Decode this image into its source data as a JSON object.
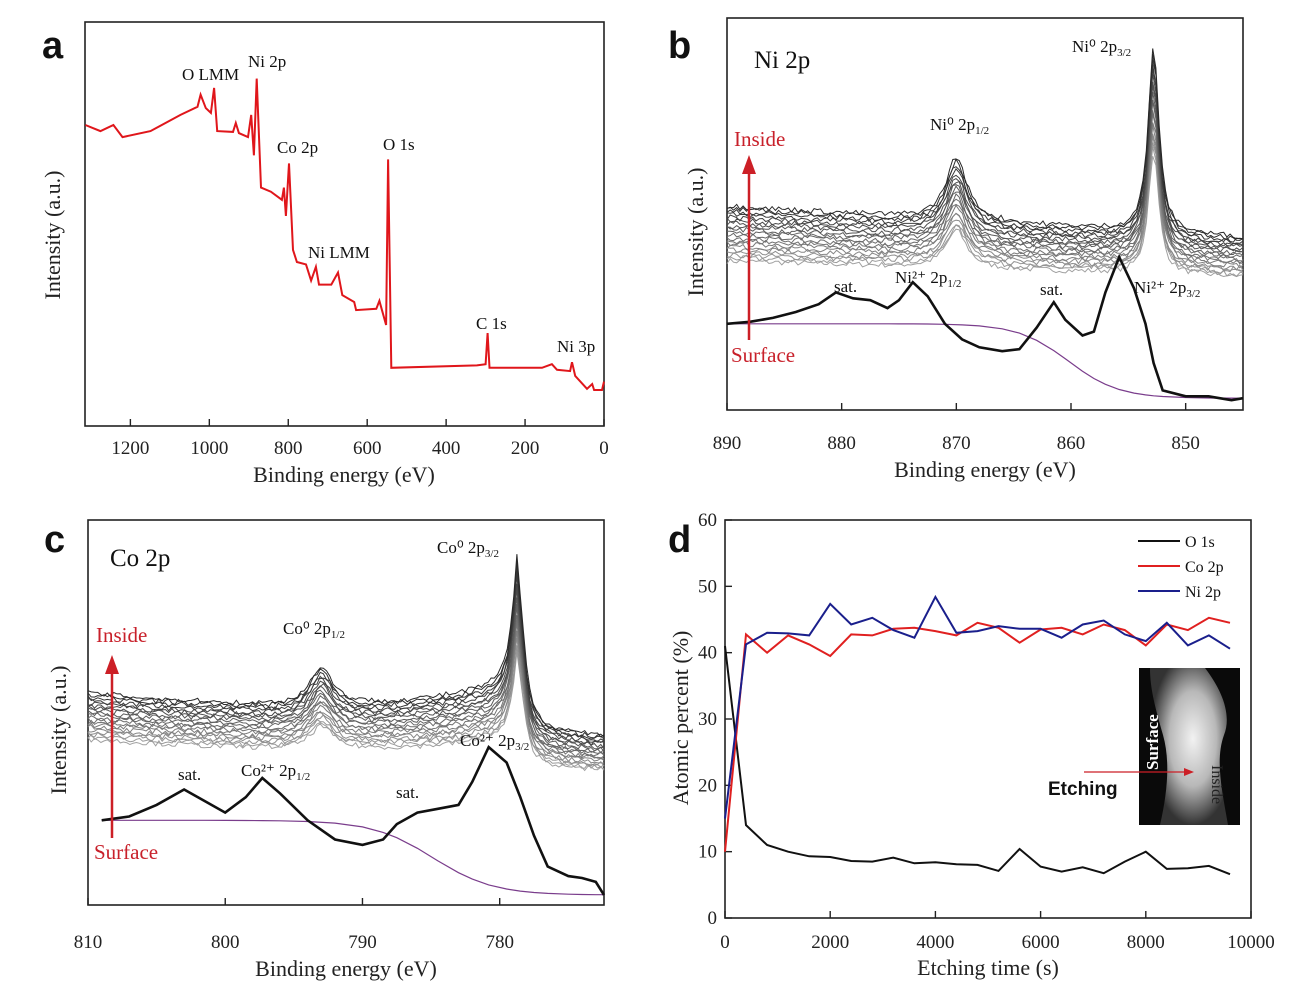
{
  "colors": {
    "survey": "#e0161b",
    "o1s": "#111111",
    "co2p": "#e02020",
    "ni2p": "#1a1f8c",
    "depth_arrow": "#cc1f26"
  },
  "chart_data": [
    {
      "panel": "a",
      "type": "line",
      "xlabel": "Binding energy (eV)",
      "ylabel": "Intensity (a.u.)",
      "xlim": [
        1315,
        0
      ],
      "ylim": [
        0,
        100
      ],
      "x_reversed": true,
      "xticks": [
        1200,
        1000,
        800,
        600,
        400,
        200,
        0
      ],
      "series": [
        {
          "color": "#e0161b",
          "points": [
            [
              1314,
              74.5
            ],
            [
              1276,
              73
            ],
            [
              1243,
              74.5
            ],
            [
              1220,
              71.5
            ],
            [
              1149,
              73
            ],
            [
              1073,
              77
            ],
            [
              1030,
              79
            ],
            [
              1022,
              82
            ],
            [
              1009,
              78.7
            ],
            [
              996,
              77.5
            ],
            [
              988,
              83.7
            ],
            [
              980,
              73
            ],
            [
              940,
              72.8
            ],
            [
              933,
              75
            ],
            [
              925,
              72.5
            ],
            [
              902,
              71.5
            ],
            [
              894,
              77
            ],
            [
              887,
              67
            ],
            [
              880,
              86
            ],
            [
              869,
              59
            ],
            [
              844,
              58
            ],
            [
              816,
              56
            ],
            [
              811,
              59
            ],
            [
              806,
              52
            ],
            [
              798,
              65
            ],
            [
              788,
              43.6
            ],
            [
              778,
              40.6
            ],
            [
              755,
              40
            ],
            [
              742,
              36
            ],
            [
              730,
              39.4
            ],
            [
              722,
              35
            ],
            [
              691,
              35
            ],
            [
              674,
              38
            ],
            [
              663,
              32.4
            ],
            [
              633,
              30.7
            ],
            [
              628,
              28.7
            ],
            [
              577,
              29
            ],
            [
              569,
              31
            ],
            [
              552,
              25
            ],
            [
              547,
              66
            ],
            [
              539,
              14.4
            ],
            [
              322,
              15
            ],
            [
              300,
              15.3
            ],
            [
              295,
              23
            ],
            [
              290,
              14.4
            ],
            [
              157,
              14.4
            ],
            [
              132,
              15.3
            ],
            [
              119,
              13.9
            ],
            [
              86,
              13.6
            ],
            [
              81,
              15.8
            ],
            [
              73,
              12.4
            ],
            [
              43,
              9.2
            ],
            [
              30,
              10.4
            ],
            [
              25,
              8.9
            ],
            [
              5,
              8.9
            ],
            [
              0,
              11
            ]
          ]
        }
      ],
      "annotations": [
        "O LMM",
        "Ni 2p",
        "Co 2p",
        "O 1s",
        "Ni LMM",
        "C 1s",
        "Ni 3p"
      ]
    },
    {
      "panel": "b",
      "type": "line",
      "title": "Ni 2p",
      "xlabel": "Binding energy (eV)",
      "ylabel": "Intensity (a.u.)",
      "xlim": [
        890,
        845
      ],
      "ylim": [
        0,
        100
      ],
      "x_reversed": true,
      "xticks": [
        890,
        880,
        870,
        860,
        850
      ],
      "surface_spectrum": [
        [
          890,
          22
        ],
        [
          888,
          22.5
        ],
        [
          886,
          23.5
        ],
        [
          884,
          25
        ],
        [
          882,
          27
        ],
        [
          880.5,
          30
        ],
        [
          879,
          28.5
        ],
        [
          877.5,
          28
        ],
        [
          876,
          26
        ],
        [
          875,
          28
        ],
        [
          873.8,
          32.6
        ],
        [
          872.5,
          29
        ],
        [
          871,
          22
        ],
        [
          869.5,
          18
        ],
        [
          868,
          16
        ],
        [
          866,
          15
        ],
        [
          864.5,
          15.5
        ],
        [
          863,
          21
        ],
        [
          861.5,
          27.5
        ],
        [
          860.5,
          23
        ],
        [
          859,
          19
        ],
        [
          858,
          20
        ],
        [
          857,
          30
        ],
        [
          855.8,
          39
        ],
        [
          854.5,
          31
        ],
        [
          853.5,
          22
        ],
        [
          852.8,
          12
        ],
        [
          852,
          5
        ],
        [
          850,
          3.5
        ],
        [
          848,
          3.5
        ],
        [
          846,
          2.5
        ],
        [
          845,
          3
        ]
      ],
      "depth_profile_peaks_eV": [
        870.0,
        852.8
      ],
      "annotations": {
        "top_a": {
          "main": "Ni⁰ 2p",
          "sub": "3/2"
        },
        "top_b": {
          "main": "Ni⁰ 2p",
          "sub": "1/2"
        },
        "sat1": "sat.",
        "p12": {
          "main": "Ni²⁺ 2p",
          "sub": "1/2"
        },
        "sat2": "sat.",
        "p32": {
          "main": "Ni²⁺ 2p",
          "sub": "3/2"
        }
      },
      "depth_labels": {
        "inside": "Inside",
        "surface": "Surface"
      }
    },
    {
      "panel": "c",
      "type": "line",
      "title": "Co 2p",
      "xlabel": "Binding energy (eV)",
      "ylabel": "Intensity (a.u.)",
      "xlim": [
        810,
        772.4
      ],
      "ylim": [
        0,
        100
      ],
      "x_reversed": true,
      "xticks": [
        810,
        800,
        790,
        780
      ],
      "surface_spectrum": [
        [
          809,
          22
        ],
        [
          807,
          23
        ],
        [
          805,
          26
        ],
        [
          803,
          30
        ],
        [
          801.5,
          27
        ],
        [
          800,
          24
        ],
        [
          798.5,
          28
        ],
        [
          797.3,
          33
        ],
        [
          796,
          29
        ],
        [
          794,
          22
        ],
        [
          792,
          17
        ],
        [
          790,
          15.6
        ],
        [
          788.5,
          17
        ],
        [
          787.5,
          21
        ],
        [
          786,
          24
        ],
        [
          784.5,
          25
        ],
        [
          783,
          26
        ],
        [
          782,
          32
        ],
        [
          780.8,
          41
        ],
        [
          779.5,
          37
        ],
        [
          778.5,
          28
        ],
        [
          777.5,
          18
        ],
        [
          776.5,
          10
        ],
        [
          775,
          7.5
        ],
        [
          774,
          7
        ],
        [
          773,
          6
        ],
        [
          772.4,
          2.6
        ]
      ],
      "depth_profile_peaks_eV": [
        793.0,
        778.6
      ],
      "annotations": {
        "top_a": {
          "main": "Co⁰ 2p",
          "sub": "3/2"
        },
        "top_b": {
          "main": "Co⁰ 2p",
          "sub": "1/2"
        },
        "sat1": "sat.",
        "p12": {
          "main": "Co²⁺ 2p",
          "sub": "1/2"
        },
        "sat2": "sat.",
        "p32": {
          "main": "Co²⁺ 2p",
          "sub": "3/2"
        }
      },
      "depth_labels": {
        "inside": "Inside",
        "surface": "Surface"
      }
    },
    {
      "panel": "d",
      "type": "line",
      "xlabel": "Etching time (s)",
      "ylabel": "Atomic percent (%)",
      "xlim": [
        0,
        10000
      ],
      "ylim": [
        0,
        60
      ],
      "xticks": [
        0,
        2000,
        4000,
        6000,
        8000,
        10000
      ],
      "yticks": [
        0,
        10,
        20,
        30,
        40,
        50,
        60
      ],
      "legend_position": "top-right",
      "x": [
        0,
        400,
        800,
        1200,
        1600,
        2000,
        2400,
        2800,
        3200,
        3600,
        4000,
        4400,
        4800,
        5200,
        5600,
        6000,
        6400,
        6800,
        7200,
        7600,
        8000,
        8400,
        8800,
        9200,
        9600
      ],
      "series": [
        {
          "name": "O 1s",
          "color": "#111111",
          "values": [
            41,
            14,
            11,
            10,
            9.3,
            9.2,
            8.6,
            8.5,
            9.1,
            8.25,
            8.4,
            8.1,
            8,
            7.1,
            10.4,
            7.75,
            7,
            7.65,
            6.75,
            8.5,
            10,
            7.4,
            7.5,
            7.85,
            6.6
          ]
        },
        {
          "name": "Co 2p",
          "color": "#e02020",
          "values": [
            10,
            42.75,
            40,
            42.6,
            41.25,
            39.5,
            42.75,
            42.6,
            43.6,
            43.75,
            43.25,
            42.6,
            44.5,
            43.75,
            41.5,
            43.5,
            43.75,
            42.75,
            44.25,
            43.4,
            41.1,
            44.25,
            43.4,
            45.25,
            44.5
          ]
        },
        {
          "name": "Ni 2p",
          "color": "#1a1f8c",
          "values": [
            15,
            41.25,
            43,
            42.9,
            42.6,
            47.35,
            44.25,
            45.25,
            43.4,
            42.25,
            48.4,
            43,
            43.25,
            44,
            43.6,
            43.6,
            42.25,
            44.25,
            44.85,
            42.75,
            41.75,
            44.5,
            41.1,
            42.6,
            40.6
          ]
        }
      ],
      "inset": {
        "surface": "Surface",
        "inside": "Inside",
        "etching": "Etching"
      }
    }
  ],
  "panel_letters": [
    "a",
    "b",
    "c",
    "d"
  ]
}
